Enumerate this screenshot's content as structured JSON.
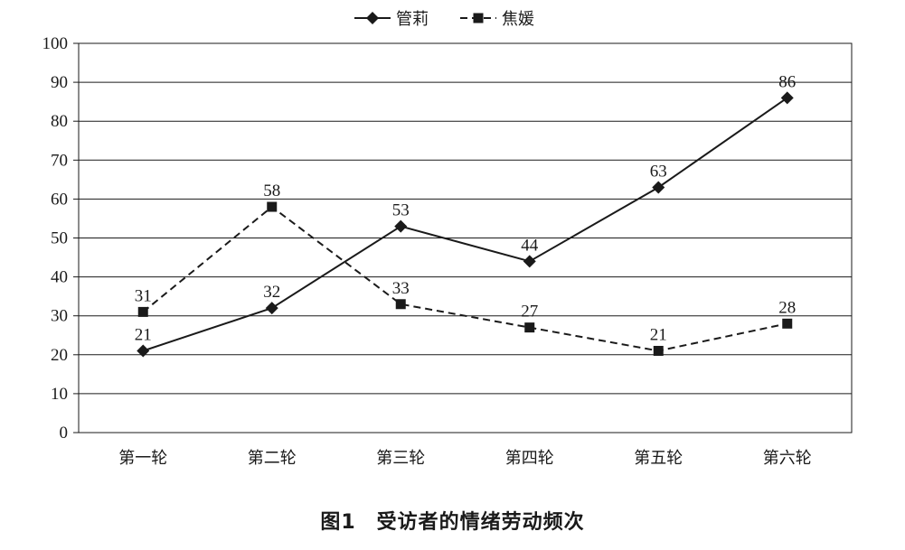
{
  "chart_data": {
    "type": "line",
    "categories": [
      "第一轮",
      "第二轮",
      "第三轮",
      "第四轮",
      "第五轮",
      "第六轮"
    ],
    "series": [
      {
        "name": "管莉",
        "values": [
          21,
          32,
          53,
          44,
          63,
          86
        ],
        "line_style": "solid",
        "marker": "diamond",
        "color": "#1a1a1a"
      },
      {
        "name": "焦媛",
        "values": [
          31,
          58,
          33,
          27,
          21,
          28
        ],
        "line_style": "dashed",
        "marker": "square",
        "color": "#1a1a1a"
      }
    ],
    "ylim": [
      0,
      100
    ],
    "yticks": [
      0,
      10,
      20,
      30,
      40,
      50,
      60,
      70,
      80,
      90,
      100
    ],
    "grid": true,
    "legend_position": "top-center"
  },
  "caption": "图1　受访者的情绪劳动频次"
}
